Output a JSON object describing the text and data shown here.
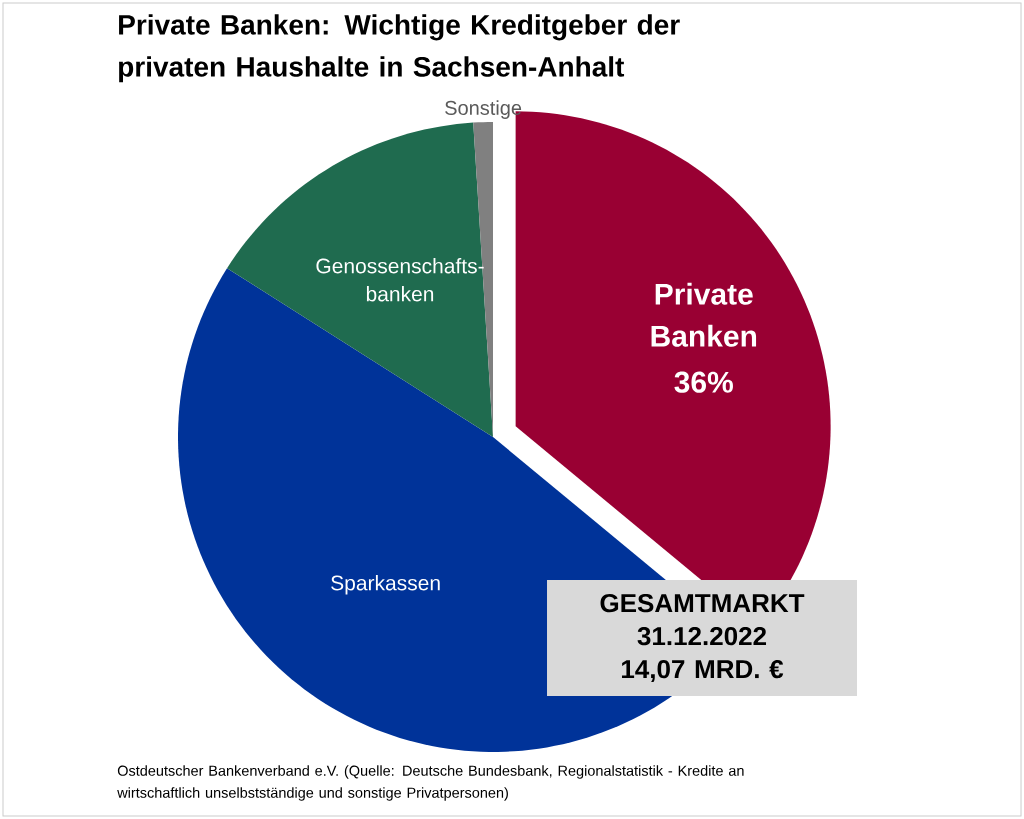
{
  "chart_data": {
    "type": "pie",
    "title": "Private Banken: Wichtige Kreditgeber der privaten Haushalte in Sachsen-Anhalt",
    "categories": [
      "Private Banken",
      "Sparkassen",
      "Genossenschafts-banken",
      "Sonstige"
    ],
    "values": [
      36,
      48,
      15,
      1
    ],
    "colors": [
      "#990033",
      "#003399",
      "#1f6b4f",
      "#808080"
    ],
    "value_labels": [
      "36%",
      null,
      null,
      null
    ],
    "annotations": [
      "GESAMTMARKT 31.12.2022 14,07 MRD. €",
      "Ostdeutscher Bankenverband e.V. (Quelle: Deutsche Bundesbank, Regionalstatistik - Kredite an wirtschaftlich unselbstständige und sonstige Privatpersonen)"
    ]
  }
}
